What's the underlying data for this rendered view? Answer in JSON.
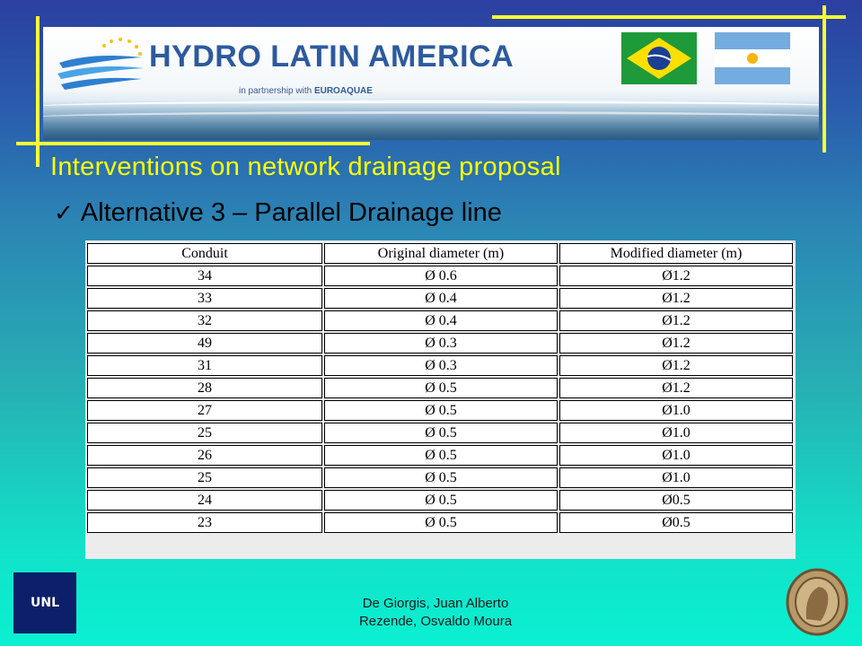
{
  "banner": {
    "title_part1": "HYDRO ",
    "title_part2": "LATIN AMERICA",
    "partner_prefix": "in partnership with ",
    "partner_name": "EUROAQUAE"
  },
  "slide": {
    "title": "Interventions on network drainage proposal",
    "subtitle": "Alternative 3 – Parallel Drainage line"
  },
  "table": {
    "headers": [
      "Conduit",
      "Original diameter (m)",
      "Modified diameter (m)"
    ],
    "rows": [
      [
        "34",
        "Ø 0.6",
        "Ø1.2"
      ],
      [
        "33",
        "Ø 0.4",
        "Ø1.2"
      ],
      [
        "32",
        "Ø 0.4",
        "Ø1.2"
      ],
      [
        "49",
        "Ø 0.3",
        "Ø1.2"
      ],
      [
        "31",
        "Ø 0.3",
        "Ø1.2"
      ],
      [
        "28",
        "Ø 0.5",
        "Ø1.2"
      ],
      [
        "27",
        "Ø 0.5",
        "Ø1.0"
      ],
      [
        "25",
        "Ø 0.5",
        "Ø1.0"
      ],
      [
        "26",
        "Ø 0.5",
        "Ø1.0"
      ],
      [
        "25",
        "Ø 0.5",
        "Ø1.0"
      ],
      [
        "24",
        "Ø 0.5",
        "Ø0.5"
      ],
      [
        "23",
        "Ø 0.5",
        "Ø0.5"
      ]
    ]
  },
  "footer": {
    "line1": "De Giorgis, Juan Alberto",
    "line2": "Rezende, Osvaldo Moura"
  },
  "logos": {
    "unl": "UNL"
  },
  "colors": {
    "accent_yellow": "#ffff00",
    "frame_yellow": "#ffff33",
    "brand_blue": "#2d5a9e"
  }
}
